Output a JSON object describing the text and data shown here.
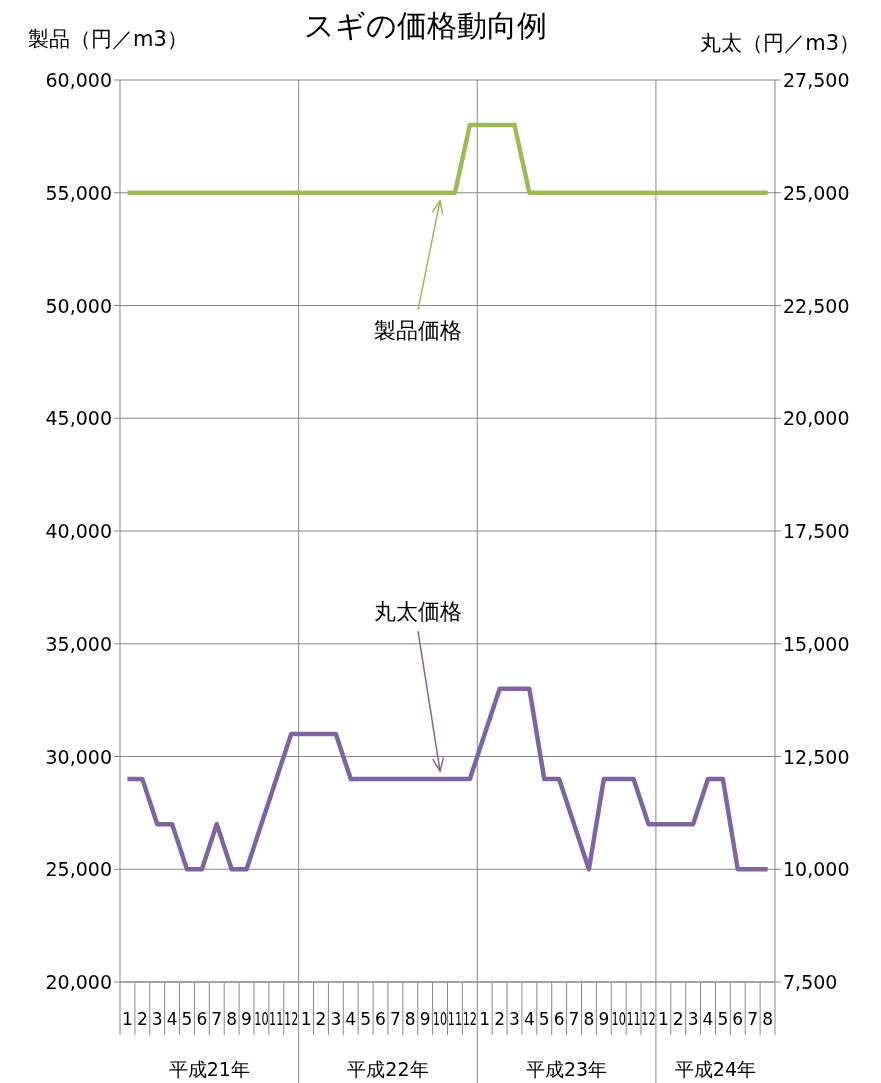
{
  "chart_data": {
    "type": "line",
    "title": "スギの価格動向例",
    "ylabel": "製品（円／m3）",
    "y2label": "丸太（円／m3）",
    "categories": [
      "1",
      "2",
      "3",
      "4",
      "5",
      "6",
      "7",
      "8",
      "9",
      "10",
      "11",
      "12",
      "1",
      "2",
      "3",
      "4",
      "5",
      "6",
      "7",
      "8",
      "9",
      "10",
      "11",
      "12",
      "1",
      "2",
      "3",
      "4",
      "5",
      "6",
      "7",
      "8",
      "9",
      "10",
      "11",
      "12",
      "1",
      "2",
      "3",
      "4",
      "5",
      "6",
      "7",
      "8"
    ],
    "series": [
      {
        "color": "#9bbb59",
        "values": [
          55000,
          55000,
          55000,
          55000,
          55000,
          55000,
          55000,
          55000,
          55000,
          55000,
          55000,
          55000,
          55000,
          55000,
          55000,
          55000,
          55000,
          55000,
          55000,
          55000,
          55000,
          55000,
          55000,
          58000,
          58000,
          58000,
          58000,
          55000,
          55000,
          55000,
          55000,
          55000,
          55000,
          55000,
          55000,
          55000,
          55000,
          55000,
          55000,
          55000,
          55000,
          55000,
          55000,
          55000
        ]
      },
      {
        "color": "#8064a2",
        "axis": "y2",
        "values": [
          12000,
          12000,
          11000,
          11000,
          10000,
          10000,
          11000,
          10000,
          10000,
          11000,
          12000,
          13000,
          13000,
          13000,
          13000,
          12000,
          12000,
          12000,
          12000,
          12000,
          12000,
          12000,
          12000,
          12000,
          13000,
          14000,
          14000,
          14000,
          12000,
          12000,
          11000,
          10000,
          12000,
          12000,
          12000,
          11000,
          11000,
          11000,
          11000,
          12000,
          12000,
          10000,
          10000,
          10000
        ]
      }
    ],
    "ylim": [
      20000,
      60000
    ],
    "yticks": [
      {
        "value": 20000,
        "label": "20,000"
      },
      {
        "value": 25000,
        "label": "25,000"
      },
      {
        "value": 30000,
        "label": "30,000"
      },
      {
        "value": 35000,
        "label": "35,000"
      },
      {
        "value": 40000,
        "label": "40,000"
      },
      {
        "value": 45000,
        "label": "45,000"
      },
      {
        "value": 50000,
        "label": "50,000"
      },
      {
        "value": 55000,
        "label": "55,000"
      },
      {
        "value": 60000,
        "label": "60,000"
      }
    ],
    "y2lim": [
      7500,
      27500
    ],
    "y2ticks": [
      {
        "value": 7500,
        "label": "7,500"
      },
      {
        "value": 10000,
        "label": "10,000"
      },
      {
        "value": 12500,
        "label": "12,500"
      },
      {
        "value": 15000,
        "label": "15,000"
      },
      {
        "value": 17500,
        "label": "17,500"
      },
      {
        "value": 20000,
        "label": "20,000"
      },
      {
        "value": 22500,
        "label": "22,500"
      },
      {
        "value": 25000,
        "label": "25,000"
      },
      {
        "value": 27500,
        "label": "27,500"
      }
    ],
    "grid": "y",
    "marker": "none",
    "line_style": "solid",
    "annotations": [
      "製品価格",
      "丸太価格",
      "平成21年",
      "平成22年",
      "平成23年",
      "平成24年"
    ]
  }
}
